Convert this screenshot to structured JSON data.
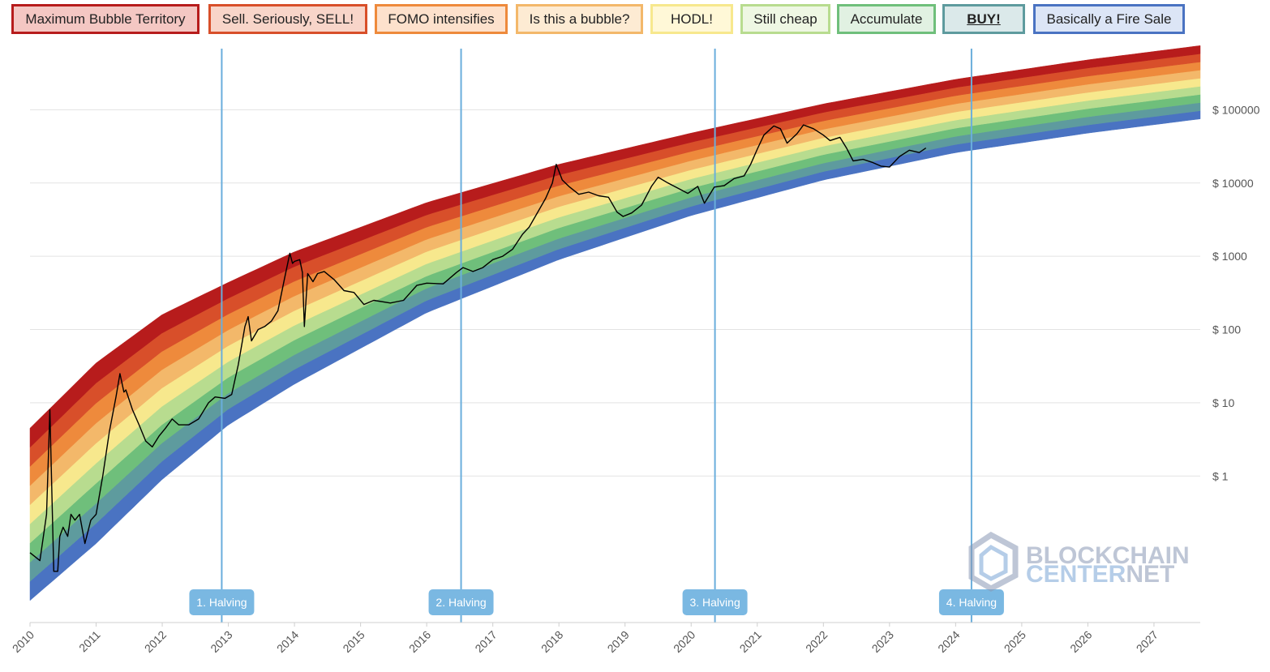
{
  "legend": [
    {
      "label": "Maximum Bubble Territory",
      "border": "#b71c1c",
      "fill": "#f4c7c3"
    },
    {
      "label": "Sell. Seriously, SELL!",
      "border": "#d84f2a",
      "fill": "#f8d5c9"
    },
    {
      "label": "FOMO intensifies",
      "border": "#ee8a3c",
      "fill": "#fde1cc"
    },
    {
      "label": "Is this a bubble?",
      "border": "#f3b86a",
      "fill": "#fdebd3"
    },
    {
      "label": "HODL!",
      "border": "#f7e88d",
      "fill": "#fff8d7"
    },
    {
      "label": "Still cheap",
      "border": "#b8dc8f",
      "fill": "#eef7e3"
    },
    {
      "label": "Accumulate",
      "border": "#6fbf7b",
      "fill": "#e1f1e2"
    },
    {
      "label": "BUY!",
      "border": "#5e9b9e",
      "fill": "#dbe9ea",
      "bold": true
    },
    {
      "label": "Basically a Fire Sale",
      "border": "#4a73c2",
      "fill": "#dce5f6"
    }
  ],
  "watermark": {
    "line1": "BLOCKCHAIN",
    "line2": "CENTER",
    "line3": ".NET"
  },
  "chart_data": {
    "type": "line",
    "title": "",
    "xlabel": "",
    "ylabel": "",
    "y_scale": "log",
    "ylim": [
      0.01,
      1000000
    ],
    "xlim": [
      2010,
      2027.7
    ],
    "grid": true,
    "x_ticks": [
      "2010",
      "2011",
      "2012",
      "2013",
      "2014",
      "2015",
      "2016",
      "2017",
      "2018",
      "2019",
      "2020",
      "2021",
      "2022",
      "2023",
      "2024",
      "2025",
      "2026",
      "2027"
    ],
    "y_ticks": [
      {
        "value": 1,
        "label": "$ 1"
      },
      {
        "value": 10,
        "label": "$ 10"
      },
      {
        "value": 100,
        "label": "$ 100"
      },
      {
        "value": 1000,
        "label": "$ 1000"
      },
      {
        "value": 10000,
        "label": "$ 10000"
      },
      {
        "value": 100000,
        "label": "$ 100000"
      }
    ],
    "bands": [
      {
        "name": "Basically a Fire Sale",
        "color": "#4a73c2"
      },
      {
        "name": "BUY!",
        "color": "#5e9b9e"
      },
      {
        "name": "Accumulate",
        "color": "#6fbf7b"
      },
      {
        "name": "Still cheap",
        "color": "#b8dc8f"
      },
      {
        "name": "HODL!",
        "color": "#f7e88d"
      },
      {
        "name": "Is this a bubble?",
        "color": "#f3b86a"
      },
      {
        "name": "FOMO intensifies",
        "color": "#ee8a3c"
      },
      {
        "name": "Sell. Seriously, SELL!",
        "color": "#d84f2a"
      },
      {
        "name": "Maximum Bubble Territory",
        "color": "#b71c1c"
      }
    ],
    "rainbow_curves": {
      "x": [
        2010.0,
        2011.0,
        2012.0,
        2013.0,
        2014.0,
        2016.0,
        2018.0,
        2020.0,
        2022.0,
        2024.0,
        2026.0,
        2027.7
      ],
      "lower": [
        0.02,
        0.12,
        0.9,
        5,
        18,
        170,
        900,
        3600,
        11000,
        26000,
        48000,
        75000
      ],
      "upper": [
        4.5,
        35,
        160,
        440,
        1150,
        5400,
        18000,
        48000,
        120000,
        260000,
        480000,
        750000
      ]
    },
    "halvings": [
      {
        "label": "1. Halving",
        "x": 2012.9
      },
      {
        "label": "2. Halving",
        "x": 2016.52
      },
      {
        "label": "3. Halving",
        "x": 2020.36
      },
      {
        "label": "4. Halving",
        "x": 2024.24
      }
    ],
    "series": [
      {
        "color": "#000000",
        "x": [
          2010.0,
          2010.15,
          2010.25,
          2010.3,
          2010.36,
          2010.42,
          2010.45,
          2010.5,
          2010.57,
          2010.62,
          2010.68,
          2010.75,
          2010.83,
          2010.92,
          2011.0,
          2011.1,
          2011.2,
          2011.3,
          2011.36,
          2011.42,
          2011.45,
          2011.55,
          2011.65,
          2011.75,
          2011.85,
          2011.95,
          2012.05,
          2012.15,
          2012.25,
          2012.4,
          2012.55,
          2012.7,
          2012.8,
          2012.95,
          2013.05,
          2013.15,
          2013.25,
          2013.3,
          2013.35,
          2013.45,
          2013.55,
          2013.65,
          2013.75,
          2013.85,
          2013.93,
          2013.97,
          2014.0,
          2014.08,
          2014.12,
          2014.15,
          2014.2,
          2014.28,
          2014.35,
          2014.45,
          2014.6,
          2014.75,
          2014.9,
          2015.05,
          2015.2,
          2015.45,
          2015.65,
          2015.85,
          2016.0,
          2016.25,
          2016.45,
          2016.55,
          2016.7,
          2016.85,
          2017.0,
          2017.15,
          2017.3,
          2017.45,
          2017.55,
          2017.7,
          2017.8,
          2017.9,
          2017.96,
          2018.05,
          2018.15,
          2018.3,
          2018.45,
          2018.6,
          2018.75,
          2018.88,
          2018.97,
          2019.1,
          2019.25,
          2019.4,
          2019.5,
          2019.65,
          2019.8,
          2019.95,
          2020.1,
          2020.2,
          2020.35,
          2020.5,
          2020.65,
          2020.8,
          2020.9,
          2021.0,
          2021.1,
          2021.25,
          2021.35,
          2021.45,
          2021.6,
          2021.7,
          2021.85,
          2022.0,
          2022.1,
          2022.25,
          2022.35,
          2022.45,
          2022.6,
          2022.75,
          2022.87,
          2023.0,
          2023.15,
          2023.3,
          2023.45,
          2023.55
        ],
        "y": [
          0.09,
          0.07,
          0.3,
          8,
          0.05,
          0.05,
          0.15,
          0.2,
          0.15,
          0.3,
          0.25,
          0.3,
          0.12,
          0.25,
          0.3,
          1,
          4,
          12,
          25,
          14,
          15,
          8,
          5,
          3,
          2.5,
          3.5,
          4.5,
          6,
          5,
          5,
          6,
          10,
          12,
          11.5,
          13,
          33,
          110,
          150,
          70,
          100,
          110,
          130,
          180,
          500,
          1100,
          800,
          850,
          900,
          600,
          110,
          580,
          450,
          580,
          620,
          480,
          340,
          320,
          220,
          250,
          230,
          250,
          400,
          430,
          420,
          600,
          700,
          620,
          700,
          900,
          1000,
          1250,
          2000,
          2500,
          4300,
          6200,
          10000,
          18000,
          11000,
          9000,
          7000,
          7500,
          6700,
          6400,
          4000,
          3500,
          3900,
          5000,
          9000,
          12000,
          10000,
          8500,
          7200,
          9000,
          5300,
          8800,
          9200,
          11500,
          12500,
          18000,
          29000,
          45000,
          60000,
          55000,
          35000,
          47000,
          62000,
          55000,
          45000,
          38000,
          42000,
          30000,
          20000,
          21000,
          19000,
          17000,
          16500,
          23000,
          28000,
          26000,
          30000
        ]
      }
    ]
  }
}
